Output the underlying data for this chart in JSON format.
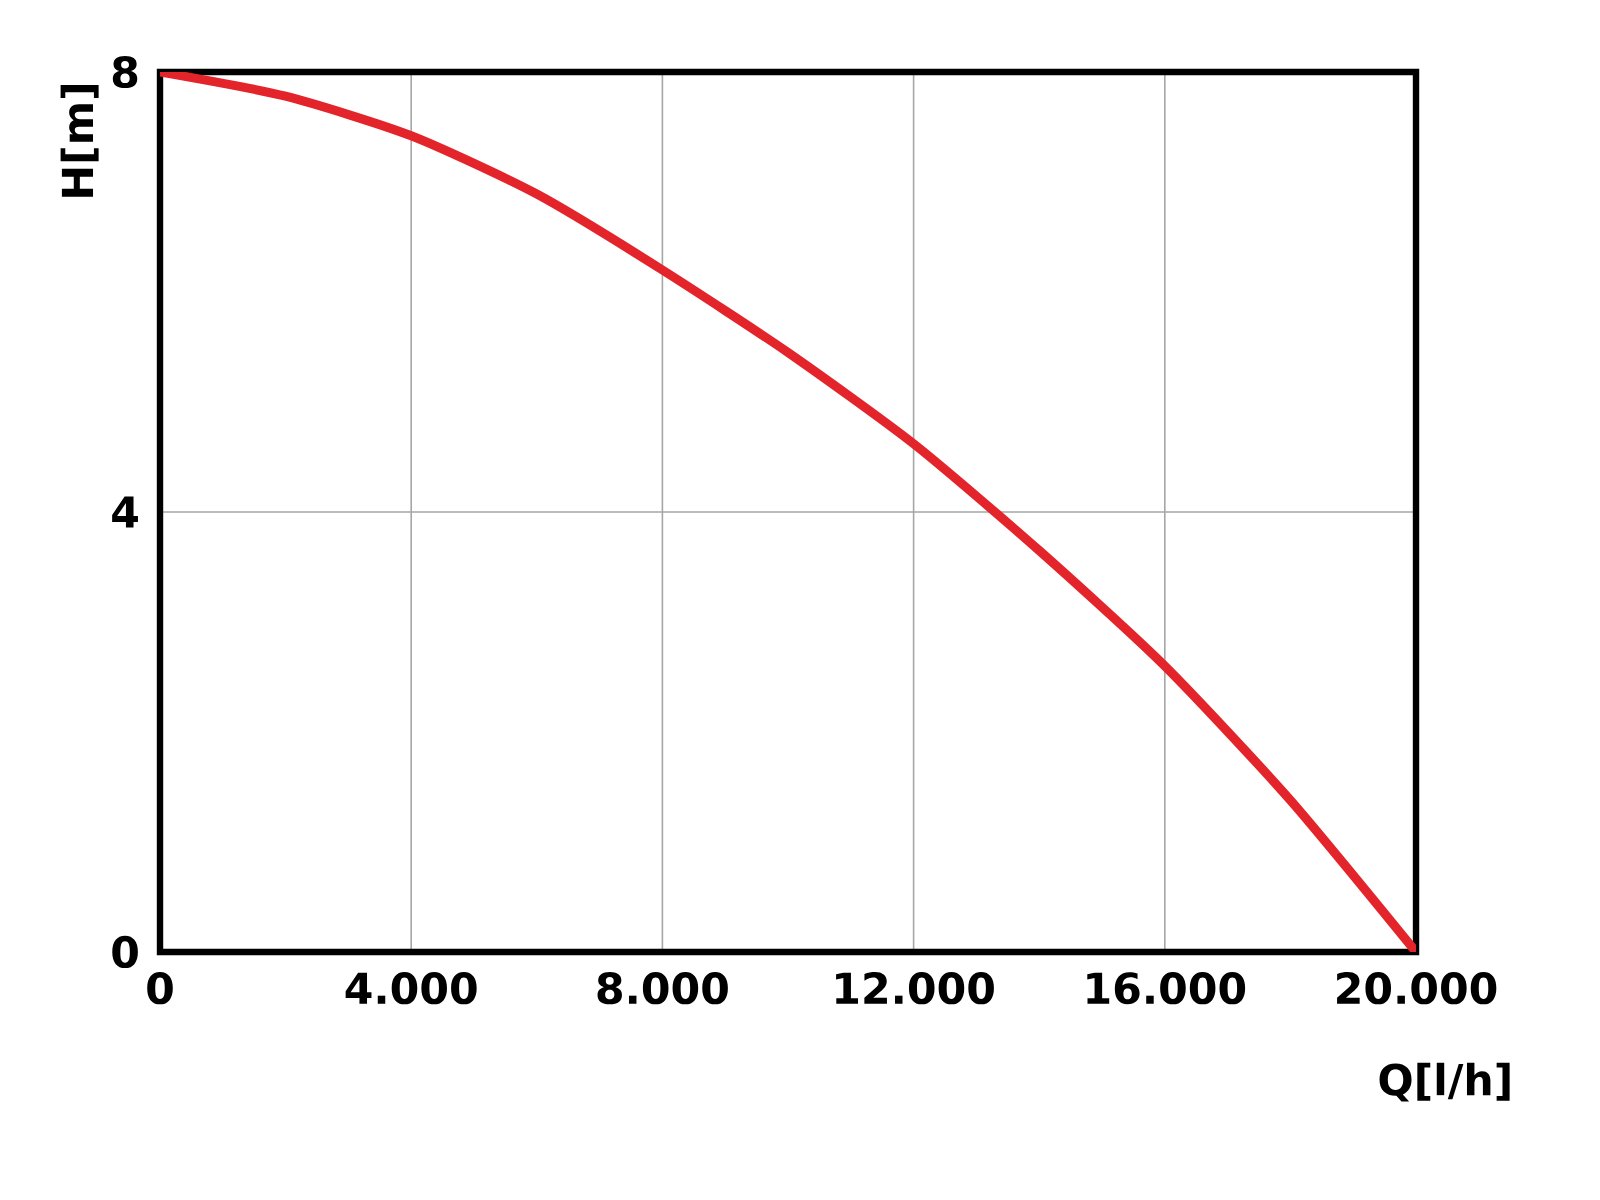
{
  "chart_data": {
    "type": "line",
    "xlabel": "Q[l/h]",
    "ylabel": "H[m]",
    "x": [
      0,
      2000,
      4000,
      6000,
      8000,
      10000,
      12000,
      14000,
      16000,
      18000,
      20000
    ],
    "series": [
      {
        "color": "#e3242b",
        "values": [
          8,
          7.78,
          7.42,
          6.89,
          6.2,
          5.45,
          4.62,
          3.65,
          2.6,
          1.38,
          0
        ]
      }
    ],
    "xlim": [
      0,
      20000
    ],
    "ylim": [
      0,
      8
    ],
    "xticks": [
      0,
      {
        "value": 4000,
        "label": "4.000"
      },
      {
        "value": 8000,
        "label": "8.000"
      },
      {
        "value": 12000,
        "label": "12.000"
      },
      {
        "value": 16000,
        "label": "16.000"
      },
      {
        "value": 20000,
        "label": "20.000"
      }
    ],
    "yticks": [
      0,
      4,
      8
    ],
    "grid": true
  }
}
